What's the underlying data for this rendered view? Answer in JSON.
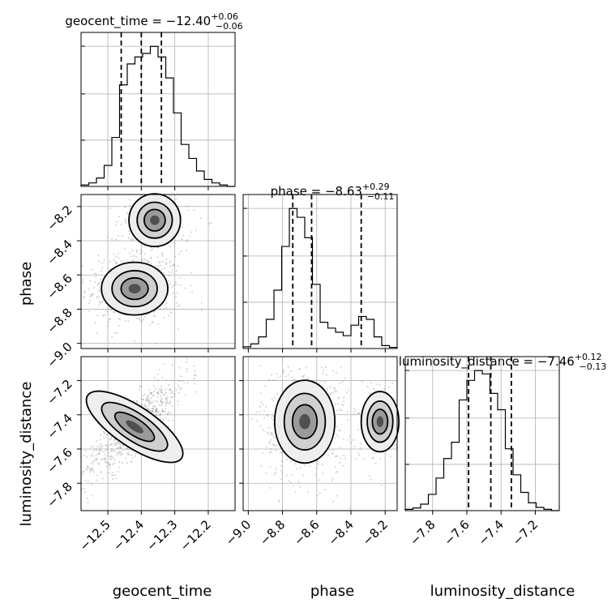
{
  "chart_data": {
    "type": "corner",
    "parameters": [
      "geocent_time",
      "phase",
      "luminosity_distance"
    ],
    "ranges": {
      "geocent_time": [
        -12.58,
        -12.12
      ],
      "phase": [
        -9.03,
        -8.13
      ],
      "luminosity_distance": [
        -7.96,
        -7.06
      ]
    },
    "ticks": {
      "geocent_time": [
        -12.5,
        -12.4,
        -12.3,
        -12.2
      ],
      "phase": [
        -9.0,
        -8.8,
        -8.6,
        -8.4,
        -8.2
      ],
      "luminosity_distance": [
        -7.8,
        -7.6,
        -7.4,
        -7.2
      ]
    },
    "tick_labels": {
      "geocent_time": [
        "−12.5",
        "−12.4",
        "−12.3",
        "−12.2"
      ],
      "phase": [
        "−9.0",
        "−8.8",
        "−8.6",
        "−8.4",
        "−8.2"
      ],
      "luminosity_distance": [
        "−7.8",
        "−7.6",
        "−7.4",
        "−7.2"
      ]
    },
    "summaries": [
      {
        "param": "geocent_time",
        "median": "−12.40",
        "plus": "+0.06",
        "minus": "−0.06",
        "quantiles": [
          -12.46,
          -12.4,
          -12.34
        ]
      },
      {
        "param": "phase",
        "median": "−8.63",
        "plus": "+0.29",
        "minus": "−0.11",
        "quantiles": [
          -8.74,
          -8.63,
          -8.34
        ]
      },
      {
        "param": "luminosity_distance",
        "median": "−7.46",
        "plus": "+0.12",
        "minus": "−0.13",
        "quantiles": [
          -7.59,
          -7.46,
          -7.34
        ]
      }
    ],
    "histograms": {
      "geocent_time": {
        "edges_range": [
          -12.58,
          -12.12
        ],
        "bins": 20,
        "counts": [
          2,
          5,
          12,
          30,
          70,
          145,
          175,
          185,
          190,
          200,
          185,
          155,
          105,
          60,
          40,
          22,
          10,
          5,
          2,
          0
        ]
      },
      "phase": {
        "edges_range": [
          -9.03,
          -8.13
        ],
        "bins": 20,
        "counts": [
          3,
          8,
          20,
          50,
          100,
          175,
          240,
          225,
          190,
          110,
          45,
          35,
          28,
          22,
          40,
          55,
          50,
          20,
          5,
          2
        ]
      },
      "luminosity_distance": {
        "edges_range": [
          -7.96,
          -7.06
        ],
        "bins": 20,
        "counts": [
          2,
          4,
          10,
          25,
          50,
          80,
          105,
          170,
          200,
          215,
          210,
          180,
          155,
          95,
          55,
          28,
          12,
          5,
          2,
          0
        ]
      }
    },
    "densities": [
      {
        "x": "geocent_time",
        "y": "phase",
        "modes": [
          {
            "cx": -12.42,
            "cy": -8.68,
            "sx": 0.045,
            "sy": 0.07,
            "w": 1.0
          },
          {
            "cx": -12.36,
            "cy": -8.28,
            "sx": 0.035,
            "sy": 0.07,
            "w": 0.35
          }
        ]
      },
      {
        "x": "geocent_time",
        "y": "luminosity_distance",
        "modes": [
          {
            "cx": -12.42,
            "cy": -7.47,
            "sx": 0.05,
            "sy": 0.1,
            "w": 1.0,
            "rho": 0.85
          }
        ]
      },
      {
        "x": "phase",
        "y": "luminosity_distance",
        "modes": [
          {
            "cx": -8.67,
            "cy": -7.44,
            "sx": 0.08,
            "sy": 0.11,
            "w": 1.0
          },
          {
            "cx": -8.23,
            "cy": -7.44,
            "sx": 0.05,
            "sy": 0.08,
            "w": 0.25
          }
        ]
      }
    ]
  },
  "labels": {
    "x0": "geocent_time",
    "x1": "phase",
    "x2": "luminosity_distance",
    "y1": "phase",
    "y2": "luminosity_distance"
  },
  "titles": {
    "t0_name": "geocent_time",
    "t1_name": "phase",
    "t2_name": "luminosity_distance"
  }
}
